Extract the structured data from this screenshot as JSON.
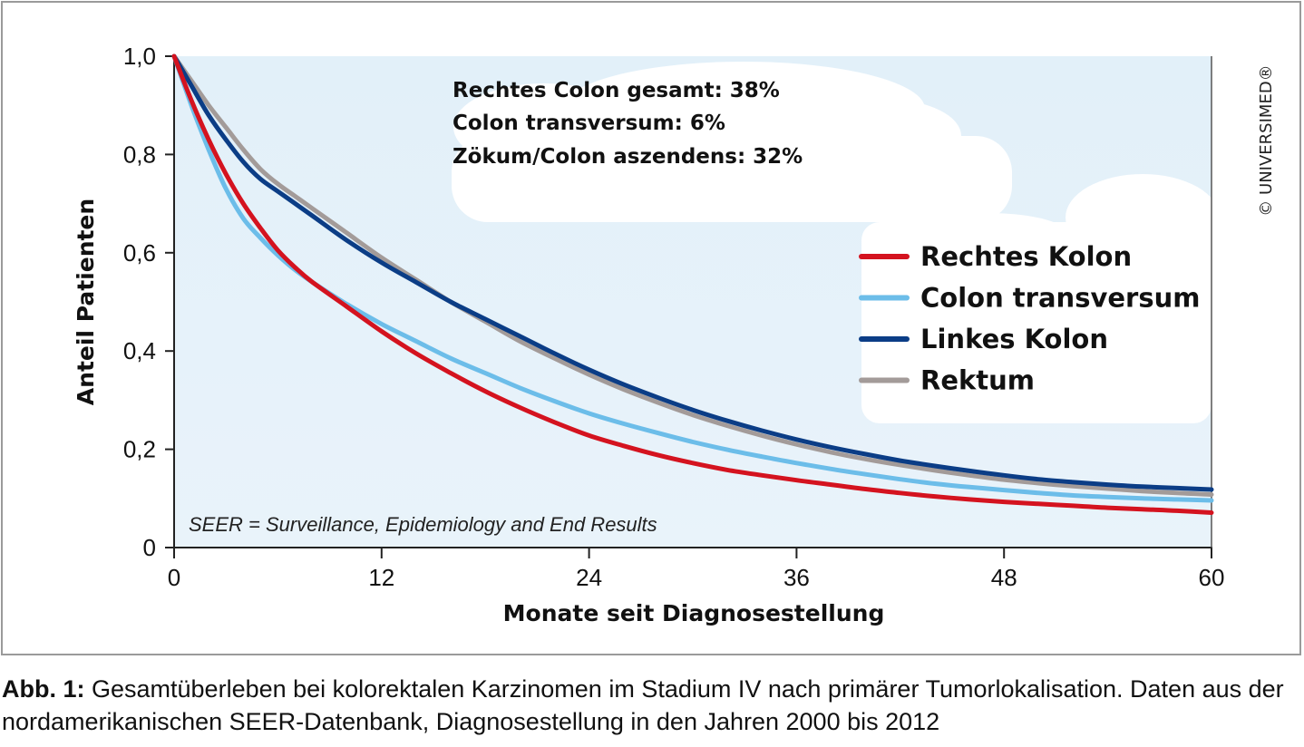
{
  "chart_data": {
    "type": "line",
    "xlabel": "Monate seit Diagnosestellung",
    "ylabel": "Anteil Patienten",
    "xlim": [
      0,
      60
    ],
    "ylim": [
      0,
      1.0
    ],
    "x_ticks": [
      "0",
      "12",
      "24",
      "36",
      "48",
      "60"
    ],
    "y_ticks": [
      "0",
      "0,2",
      "0,4",
      "0,6",
      "0,8",
      "1,0"
    ],
    "grid": false,
    "legend": "right",
    "x": [
      0,
      1,
      2,
      3,
      4,
      5,
      6,
      7,
      8,
      10,
      12,
      14,
      16,
      18,
      20,
      22,
      24,
      26,
      28,
      30,
      32,
      34,
      36,
      38,
      40,
      42,
      44,
      46,
      48,
      50,
      52,
      54,
      56,
      58,
      60
    ],
    "series": [
      {
        "name": "Rechtes Kolon",
        "color": "#d4131f",
        "values": [
          1.0,
          0.91,
          0.83,
          0.76,
          0.7,
          0.65,
          0.605,
          0.57,
          0.54,
          0.49,
          0.44,
          0.395,
          0.355,
          0.318,
          0.285,
          0.255,
          0.228,
          0.207,
          0.188,
          0.172,
          0.158,
          0.147,
          0.137,
          0.128,
          0.119,
          0.111,
          0.104,
          0.098,
          0.093,
          0.089,
          0.085,
          0.081,
          0.078,
          0.075,
          0.071
        ]
      },
      {
        "name": "Colon transversum",
        "color": "#6cbde9",
        "values": [
          1.0,
          0.9,
          0.81,
          0.73,
          0.67,
          0.63,
          0.595,
          0.565,
          0.54,
          0.495,
          0.455,
          0.42,
          0.385,
          0.355,
          0.325,
          0.298,
          0.273,
          0.252,
          0.233,
          0.215,
          0.199,
          0.185,
          0.172,
          0.16,
          0.149,
          0.139,
          0.13,
          0.123,
          0.117,
          0.111,
          0.106,
          0.103,
          0.1,
          0.098,
          0.096
        ]
      },
      {
        "name": "Linkes Kolon",
        "color": "#0b3d86",
        "values": [
          1.0,
          0.94,
          0.88,
          0.83,
          0.785,
          0.75,
          0.725,
          0.7,
          0.675,
          0.625,
          0.58,
          0.54,
          0.5,
          0.465,
          0.43,
          0.395,
          0.362,
          0.332,
          0.305,
          0.28,
          0.258,
          0.238,
          0.22,
          0.204,
          0.19,
          0.177,
          0.166,
          0.156,
          0.147,
          0.139,
          0.133,
          0.128,
          0.124,
          0.121,
          0.118
        ]
      },
      {
        "name": "Rektum",
        "color": "#a39b99",
        "values": [
          1.0,
          0.95,
          0.9,
          0.855,
          0.81,
          0.77,
          0.74,
          0.715,
          0.69,
          0.64,
          0.59,
          0.545,
          0.5,
          0.46,
          0.42,
          0.385,
          0.352,
          0.322,
          0.295,
          0.27,
          0.248,
          0.228,
          0.21,
          0.194,
          0.18,
          0.168,
          0.157,
          0.147,
          0.138,
          0.131,
          0.125,
          0.12,
          0.115,
          0.111,
          0.108
        ]
      }
    ],
    "annotations": [
      "Rechtes Colon gesamt: 38%",
      "Colon transversum: 6%",
      "Zökum/Colon aszendens: 32%"
    ],
    "footnote": "SEER = Surveillance, Epidemiology and End Results"
  },
  "copyright": "© UNIVERSIMED®",
  "caption": {
    "label": "Abb. 1:",
    "text": " Gesamtüberleben bei kolorektalen Karzinomen im Stadium IV nach primärer Tumorlokalisation. Daten aus der nordamerikanischen SEER-Datenbank, Diagnosestellung in den Jahren 2000 bis 2012"
  }
}
